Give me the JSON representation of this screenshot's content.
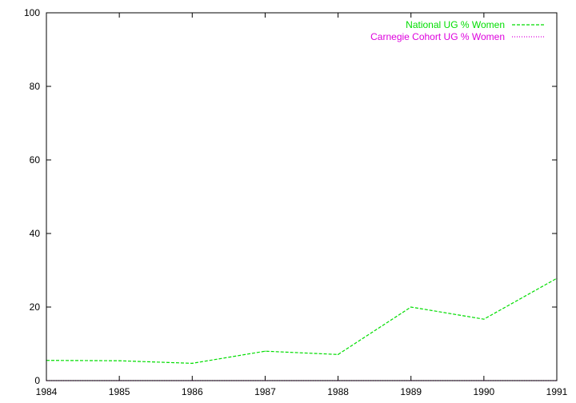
{
  "chart_data": {
    "type": "line",
    "x": [
      1984,
      1985,
      1986,
      1987,
      1988,
      1989,
      1990,
      1991
    ],
    "x_ticks": [
      "1984",
      "1985",
      "1986",
      "1987",
      "1988",
      "1989",
      "1990",
      "1991"
    ],
    "y_ticks": [
      "0",
      "20",
      "40",
      "60",
      "80",
      "100"
    ],
    "xlim": [
      1984,
      1991
    ],
    "ylim": [
      0,
      100
    ],
    "grid": false,
    "legend_position": "top-right",
    "series": [
      {
        "name": "National UG % Women",
        "color": "#00dd00",
        "dash": "dashed",
        "values": [
          5.5,
          5.4,
          4.7,
          8.0,
          7.1,
          20.0,
          16.7,
          27.8
        ]
      },
      {
        "name": "Carnegie Cohort UG % Women",
        "color": "#dd00dd",
        "dash": "dotted",
        "values": [
          0,
          0,
          0,
          0,
          0,
          0,
          0,
          0
        ]
      }
    ]
  }
}
